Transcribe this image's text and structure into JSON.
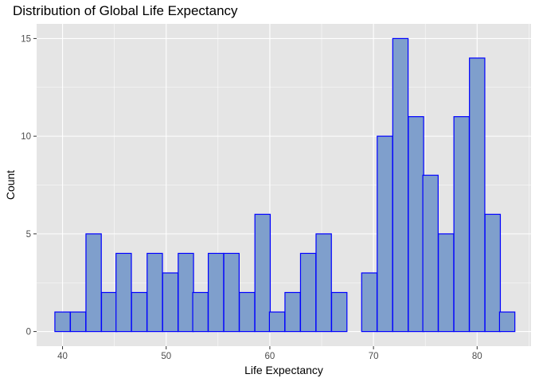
{
  "chart_data": {
    "type": "bar",
    "title": "Distribution of Global Life Expectancy",
    "xlabel": "Life Expectancy",
    "ylabel": "Count",
    "xlim": [
      37.5,
      85.2
    ],
    "ylim": [
      -0.75,
      15.75
    ],
    "x_ticks": [
      40,
      50,
      60,
      70,
      80
    ],
    "y_ticks": [
      0,
      5,
      10,
      15
    ],
    "bin_width": 1.48,
    "bins": [
      {
        "x": 40.0,
        "count": 1
      },
      {
        "x": 41.5,
        "count": 1
      },
      {
        "x": 43.0,
        "count": 5
      },
      {
        "x": 44.5,
        "count": 2
      },
      {
        "x": 45.9,
        "count": 4
      },
      {
        "x": 47.4,
        "count": 2
      },
      {
        "x": 48.9,
        "count": 4
      },
      {
        "x": 50.4,
        "count": 3
      },
      {
        "x": 51.9,
        "count": 4
      },
      {
        "x": 53.3,
        "count": 2
      },
      {
        "x": 54.8,
        "count": 4
      },
      {
        "x": 56.3,
        "count": 4
      },
      {
        "x": 57.8,
        "count": 2
      },
      {
        "x": 59.3,
        "count": 6
      },
      {
        "x": 60.7,
        "count": 1
      },
      {
        "x": 62.2,
        "count": 2
      },
      {
        "x": 63.7,
        "count": 4
      },
      {
        "x": 65.2,
        "count": 5
      },
      {
        "x": 66.7,
        "count": 2
      },
      {
        "x": 68.1,
        "count": 0
      },
      {
        "x": 69.6,
        "count": 3
      },
      {
        "x": 71.1,
        "count": 10
      },
      {
        "x": 72.6,
        "count": 15
      },
      {
        "x": 74.1,
        "count": 11
      },
      {
        "x": 75.5,
        "count": 8
      },
      {
        "x": 77.0,
        "count": 5
      },
      {
        "x": 78.5,
        "count": 11
      },
      {
        "x": 80.0,
        "count": 14
      },
      {
        "x": 81.5,
        "count": 6
      },
      {
        "x": 82.9,
        "count": 1
      }
    ],
    "colors": {
      "panel": "#e5e5e5",
      "grid_major": "#ffffff",
      "bar_fill": "#7f9fcc",
      "bar_outline": "#0000ff"
    },
    "grid": true,
    "legend": "none"
  }
}
